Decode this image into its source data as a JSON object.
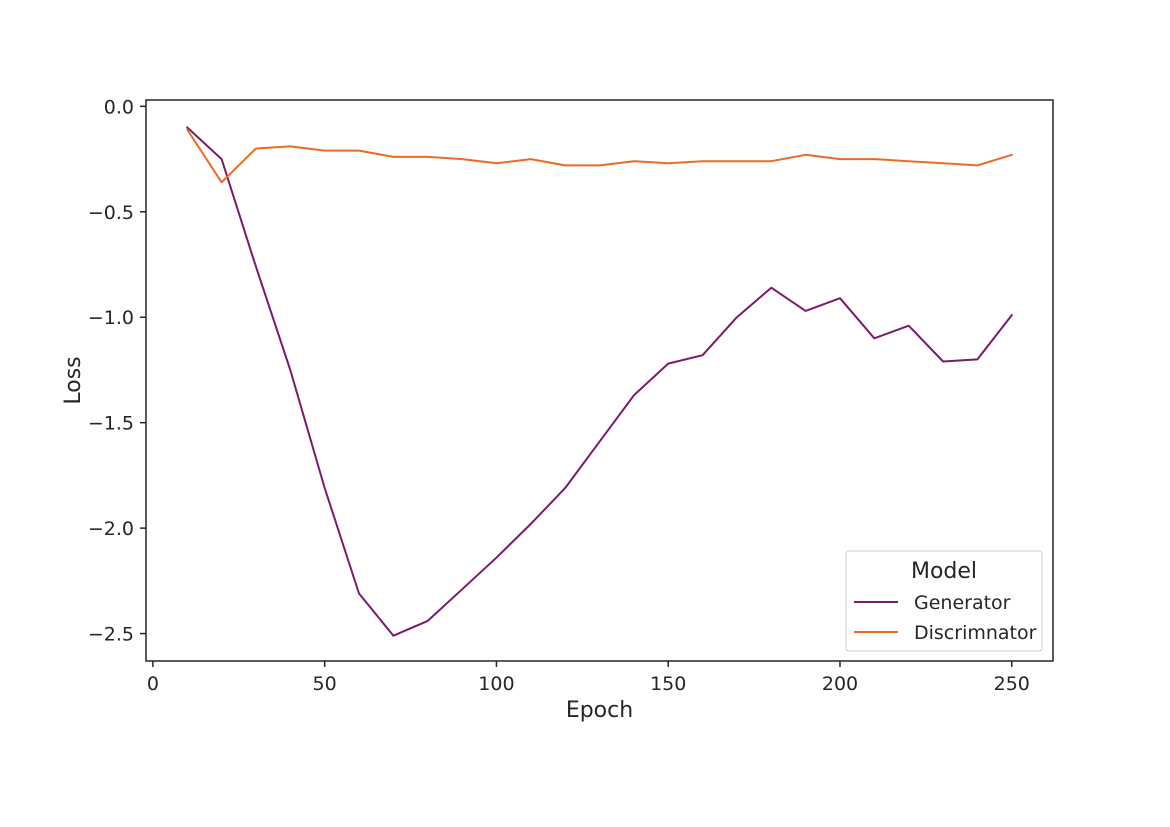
{
  "chart_data": {
    "type": "line",
    "xlabel": "Epoch",
    "ylabel": "Loss",
    "xlim": [
      -2,
      262
    ],
    "ylim": [
      -2.63,
      0.03
    ],
    "xticks": [
      0,
      50,
      100,
      150,
      200,
      250
    ],
    "yticks": [
      0.0,
      -0.5,
      -1.0,
      -1.5,
      -2.0,
      -2.5
    ],
    "grid": false,
    "legend": {
      "title": "Model",
      "position": "bottom-right"
    },
    "x": [
      10,
      20,
      30,
      40,
      50,
      60,
      70,
      80,
      90,
      100,
      110,
      120,
      130,
      140,
      150,
      160,
      170,
      180,
      190,
      200,
      210,
      220,
      230,
      240,
      250
    ],
    "series": [
      {
        "name": "Generator",
        "color": "#7b1a6a",
        "values": [
          -0.1,
          -0.25,
          -0.76,
          -1.25,
          -1.81,
          -2.31,
          -2.51,
          -2.44,
          -2.29,
          -2.14,
          -1.98,
          -1.81,
          -1.59,
          -1.37,
          -1.22,
          -1.18,
          -1.0,
          -0.86,
          -0.97,
          -0.91,
          -1.1,
          -1.04,
          -1.21,
          -1.2,
          -0.99
        ]
      },
      {
        "name": "Discrimnator",
        "color": "#ec6a22",
        "values": [
          -0.11,
          -0.36,
          -0.2,
          -0.19,
          -0.21,
          -0.21,
          -0.24,
          -0.24,
          -0.25,
          -0.27,
          -0.25,
          -0.28,
          -0.28,
          -0.26,
          -0.27,
          -0.26,
          -0.26,
          -0.26,
          -0.23,
          -0.25,
          -0.25,
          -0.26,
          -0.27,
          -0.28,
          -0.23
        ]
      }
    ]
  }
}
